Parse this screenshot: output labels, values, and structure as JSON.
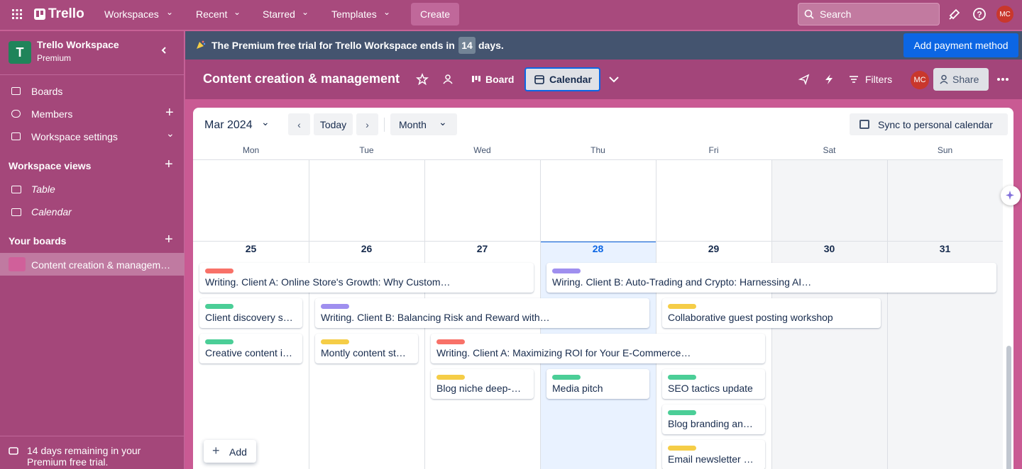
{
  "topnav": {
    "brand": "Trello",
    "menus": [
      "Workspaces",
      "Recent",
      "Starred",
      "Templates"
    ],
    "create": "Create",
    "search": "Search",
    "avatar": "MC"
  },
  "sidebar": {
    "logo": "T",
    "workspace": "Trello Workspace",
    "plan": "Premium",
    "items": [
      "Boards",
      "Members",
      "Workspace settings"
    ],
    "views_title": "Workspace views",
    "views": [
      "Table",
      "Calendar"
    ],
    "boards_title": "Your boards",
    "boards": [
      "Content creation & managem…"
    ],
    "trial_note": "14 days remaining in your Premium free trial."
  },
  "banner": {
    "text": "The Premium free trial for Trello Workspace ends in",
    "days": 14,
    "suffix": "days.",
    "button": "Add payment method"
  },
  "board_header": {
    "title": "Content creation & management",
    "views": [
      "Board",
      "Calendar"
    ],
    "filters": "Filters",
    "avatar": "MC",
    "share": "Share"
  },
  "calendar": {
    "month": "Mar 2024",
    "today": "Today",
    "view": "Month",
    "sync": "Sync to personal calendar",
    "weekdays": [
      "Mon",
      "Tue",
      "Wed",
      "Thu",
      "Fri",
      "Sat",
      "Sun"
    ],
    "dates": [
      25,
      26,
      27,
      28,
      29,
      30,
      31
    ],
    "add": "Add",
    "cards": [
      {
        "label_color": "#f87168",
        "title": "Writing. Client A: Online Store's Growth: Why Custom…"
      },
      {
        "label_color": "#9f8fef",
        "title": "Wiring. Client B: Auto-Trading and Crypto: Harnessing AI…"
      },
      {
        "label_color": "#4bce97",
        "title": "Client discovery s…"
      },
      {
        "label_color": "#9f8fef",
        "title": "Writing. Client B: Balancing Risk and Reward with…"
      },
      {
        "label_color": "#f5cd47",
        "title": "Collaborative guest posting workshop"
      },
      {
        "label_color": "#4bce97",
        "title": "Creative content i…"
      },
      {
        "label_color": "#f5cd47",
        "title": "Montly content st…"
      },
      {
        "label_color": "#f87168",
        "title": "Writing. Client A: Maximizing ROI for Your E-Commerce…"
      },
      {
        "label_color": "#f5cd47",
        "title": "Blog niche deep-…"
      },
      {
        "label_color": "#4bce97",
        "title": "Media pitch"
      },
      {
        "label_color": "#4bce97",
        "title": "SEO tactics update"
      },
      {
        "label_color": "#4bce97",
        "title": "Blog branding an…"
      },
      {
        "label_color": "#f5cd47",
        "title": "Email newsletter …"
      }
    ]
  }
}
